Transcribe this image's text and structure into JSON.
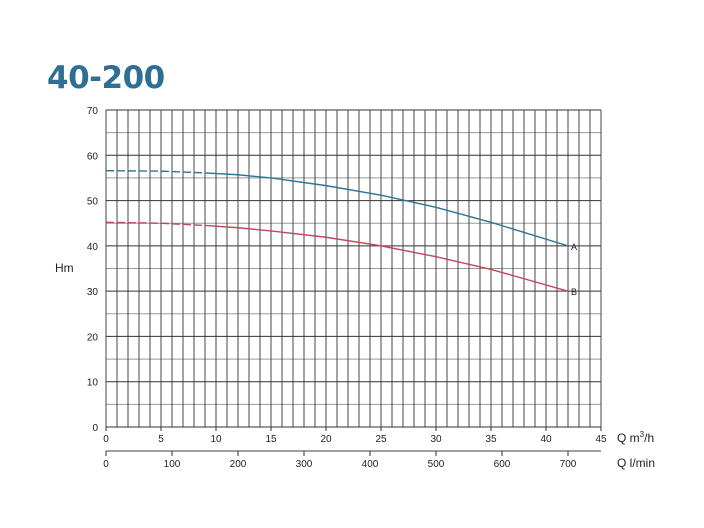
{
  "chart_data": {
    "type": "line",
    "title": "40-200",
    "ylabel": "Hm",
    "xlabel": "Q m³/h",
    "xlabel_main": "Q m",
    "xlabel_sup": "3",
    "xlabel_suffix": "/h",
    "x2label": "Q l/min",
    "xlim": [
      0,
      45
    ],
    "ylim": [
      0,
      70
    ],
    "x2lim": [
      0,
      750
    ],
    "xticks": [
      0,
      5,
      10,
      15,
      20,
      25,
      30,
      35,
      40,
      45
    ],
    "yticks": [
      0,
      10,
      20,
      30,
      40,
      50,
      60,
      70
    ],
    "x2ticks": [
      0,
      100,
      200,
      300,
      400,
      500,
      600,
      700
    ],
    "grid": true,
    "series": [
      {
        "name": "A",
        "color": "#2e7595",
        "dashed_until": 9,
        "x": [
          0,
          5,
          9,
          12,
          15,
          20,
          25,
          30,
          35,
          42
        ],
        "y": [
          56.6,
          56.5,
          56.1,
          55.7,
          55.0,
          53.3,
          51.2,
          48.5,
          45.2,
          40.0
        ]
      },
      {
        "name": "B",
        "color": "#c0485e",
        "dashed_until": 9,
        "x": [
          0,
          5,
          9,
          12,
          15,
          20,
          25,
          30,
          35,
          42
        ],
        "y": [
          45.2,
          45.0,
          44.5,
          44.0,
          43.3,
          41.9,
          40.0,
          37.6,
          34.8,
          30.0
        ]
      }
    ]
  }
}
